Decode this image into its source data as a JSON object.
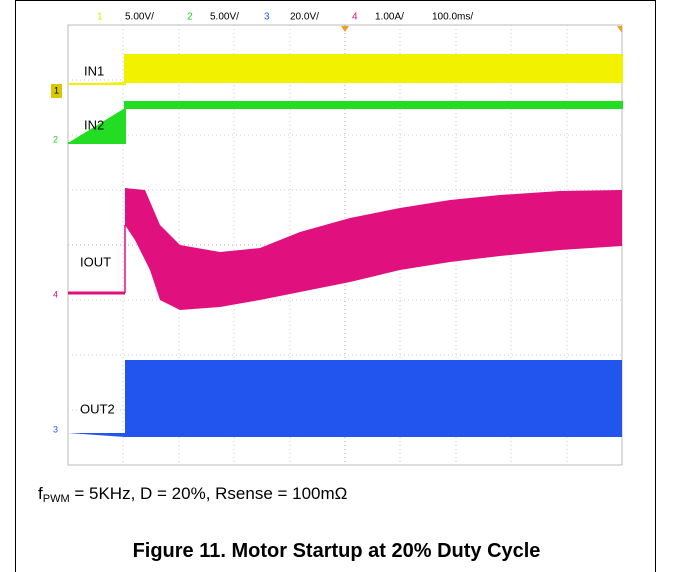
{
  "scope": {
    "channels": [
      {
        "id": "1",
        "scale": "5.00V/"
      },
      {
        "id": "2",
        "scale": "5.00V/"
      },
      {
        "id": "3",
        "scale": "20.0V/"
      },
      {
        "id": "4",
        "scale": "1.00A/"
      }
    ],
    "timebase": "100.0ms/",
    "traces": [
      "IN1",
      "IN2",
      "IOUT",
      "OUT2"
    ]
  },
  "caption": {
    "f": "f",
    "sub": "PWM",
    "rest": " = 5KHz, D = 20%, Rsense = 100mΩ"
  },
  "figure_title": "Figure 11. Motor Startup at 20% Duty Cycle"
}
